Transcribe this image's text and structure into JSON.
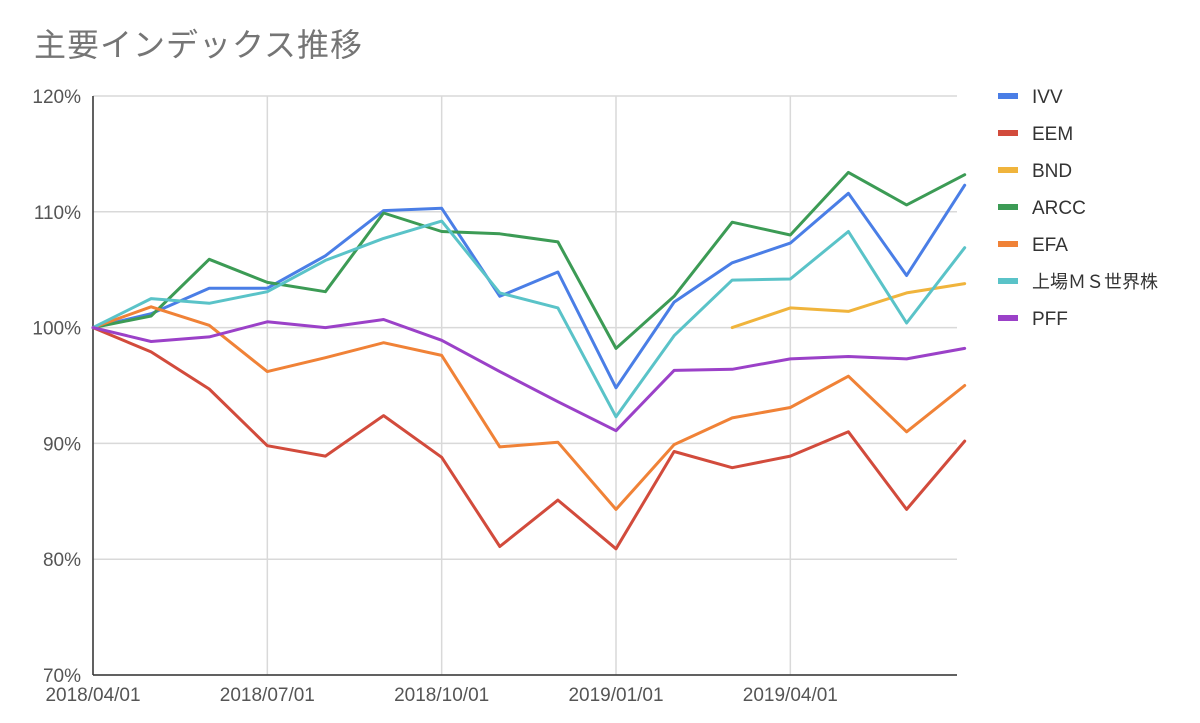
{
  "chart_data": {
    "type": "line",
    "title": "主要インデックス推移",
    "xlabel": "",
    "ylabel": "",
    "x_tick_labels": [
      "2018/04/01",
      "2018/07/01",
      "2018/10/01",
      "2019/01/01",
      "2019/04/01"
    ],
    "y_tick_labels": [
      "120%",
      "110%",
      "100%",
      "90%",
      "80%",
      "70%"
    ],
    "y_ticks": [
      120,
      110,
      100,
      90,
      80,
      70
    ],
    "ylim": [
      70,
      120
    ],
    "grid": true,
    "legend_position": "right",
    "x": [
      "2018/04/01",
      "2018/05/01",
      "2018/06/01",
      "2018/07/01",
      "2018/08/01",
      "2018/09/01",
      "2018/10/01",
      "2018/11/01",
      "2018/12/01",
      "2019/01/01",
      "2019/02/01",
      "2019/03/01",
      "2019/04/01",
      "2019/05/01",
      "2019/06/01",
      "2019/07/01"
    ],
    "series": [
      {
        "name": "IVV",
        "color": "#4a7ee6",
        "values": [
          100,
          101.2,
          103.4,
          103.4,
          106.2,
          110.1,
          110.3,
          102.7,
          104.8,
          94.8,
          102.2,
          105.6,
          107.3,
          111.6,
          104.5,
          112.3
        ]
      },
      {
        "name": "EEM",
        "color": "#d24b3c",
        "values": [
          100,
          97.9,
          94.7,
          89.8,
          88.9,
          92.4,
          88.8,
          81.1,
          85.1,
          80.9,
          89.3,
          87.9,
          88.9,
          91.0,
          84.3,
          90.2
        ]
      },
      {
        "name": "BND",
        "color": "#f0b43c",
        "values": [
          null,
          null,
          null,
          null,
          null,
          null,
          null,
          null,
          null,
          null,
          null,
          100.0,
          101.7,
          101.4,
          103.0,
          103.8
        ]
      },
      {
        "name": "ARCC",
        "color": "#3c9b55",
        "values": [
          100,
          101.0,
          105.9,
          103.9,
          103.1,
          109.9,
          108.3,
          108.1,
          107.4,
          98.2,
          102.7,
          109.1,
          108.0,
          113.4,
          110.6,
          113.2
        ]
      },
      {
        "name": "EFA",
        "color": "#f08237",
        "values": [
          100,
          101.8,
          100.2,
          96.2,
          97.4,
          98.7,
          97.6,
          89.7,
          90.1,
          84.3,
          89.9,
          92.2,
          93.1,
          95.8,
          91.0,
          95.0
        ]
      },
      {
        "name": "上場ＭＳ世界株",
        "color": "#5ac3c8",
        "values": [
          100,
          102.5,
          102.1,
          103.1,
          105.8,
          107.7,
          109.2,
          103.0,
          101.7,
          92.3,
          99.3,
          104.1,
          104.2,
          108.3,
          100.4,
          106.9
        ]
      },
      {
        "name": "PFF",
        "color": "#9b41c8",
        "values": [
          100,
          98.8,
          99.2,
          100.5,
          100.0,
          100.7,
          98.9,
          96.2,
          93.6,
          91.1,
          96.3,
          96.4,
          97.3,
          97.5,
          97.3,
          98.2
        ]
      }
    ]
  }
}
